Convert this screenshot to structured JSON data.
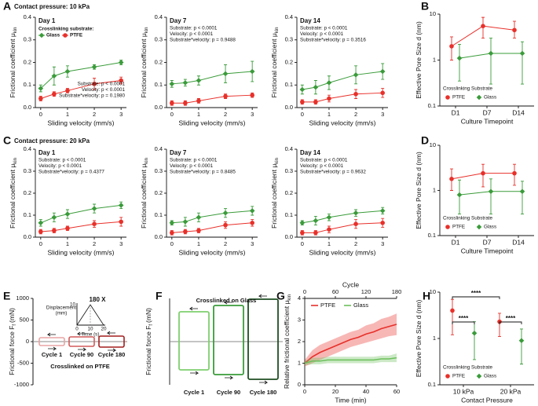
{
  "chart_data": [
    {
      "type": "line",
      "panel": "A",
      "heading": "Contact pressure: 10 kPa",
      "title": "Day 1",
      "xlabel": "Sliding velocity (mm/s)",
      "ylabel": "Frictional coefficient μ",
      "ylabel_sub": "kin",
      "x": [
        0,
        0.5,
        1,
        2,
        3
      ],
      "xlim": [
        -0.2,
        3.2
      ],
      "xticks": [
        0,
        1,
        2,
        3
      ],
      "ylim": [
        0,
        0.4
      ],
      "yticks": [
        {
          "value": 0,
          "label": "0.0"
        },
        0.1,
        0.2,
        0.3,
        0.4
      ],
      "legend_title": "Crosslinking substrate:",
      "legend": "upper left",
      "series": [
        {
          "name": "Glass",
          "color": "#3a9b3a",
          "marker": "diamond",
          "values": [
            0.085,
            0.14,
            0.16,
            0.18,
            0.2
          ],
          "errors": [
            0.015,
            0.04,
            0.025,
            0.01,
            0.01
          ]
        },
        {
          "name": "PTFE",
          "color": "#e8302a",
          "marker": "circle",
          "values": [
            0.04,
            0.06,
            0.075,
            0.105,
            0.12
          ],
          "errors": [
            0.01,
            0.01,
            0.01,
            0.025,
            0.015
          ]
        }
      ],
      "annotation_corner": "lower right",
      "annotations": [
        "Substrate: p < 0.0001",
        "Velocity: p < 0.0001",
        "Substrate*velocity: p = 0.1980"
      ]
    },
    {
      "type": "line",
      "title": "Day 7",
      "xlabel": "Sliding velocity (mm/s)",
      "ylabel": "Frictional coefficient μ",
      "ylabel_sub": "kin",
      "x": [
        0,
        0.5,
        1,
        2,
        3
      ],
      "xlim": [
        -0.2,
        3.2
      ],
      "xticks": [
        0,
        1,
        2,
        3
      ],
      "ylim": [
        0,
        0.4
      ],
      "yticks": [
        {
          "value": 0,
          "label": "0.0"
        },
        0.1,
        0.2,
        0.3,
        0.4
      ],
      "series": [
        {
          "color": "#3a9b3a",
          "marker": "diamond",
          "values": [
            0.105,
            0.11,
            0.12,
            0.15,
            0.16
          ],
          "errors": [
            0.015,
            0.015,
            0.02,
            0.04,
            0.045
          ]
        },
        {
          "color": "#e8302a",
          "marker": "circle",
          "values": [
            0.02,
            0.02,
            0.03,
            0.05,
            0.055
          ],
          "errors": [
            0.01,
            0.01,
            0.01,
            0.01,
            0.01
          ]
        }
      ],
      "annotation_corner": "upper left",
      "annotations": [
        "Substrate: p < 0.0001",
        "Velocity: p < 0.0001",
        "Substrate*velocity: p = 0.9488"
      ]
    },
    {
      "type": "line",
      "title": "Day 14",
      "xlabel": "Sliding velocity (mm/s)",
      "ylabel": "Frictional coefficient μ",
      "ylabel_sub": "kin",
      "x": [
        0,
        0.5,
        1,
        2,
        3
      ],
      "xlim": [
        -0.2,
        3.2
      ],
      "xticks": [
        0,
        1,
        2,
        3
      ],
      "ylim": [
        0,
        0.4
      ],
      "yticks": [
        {
          "value": 0,
          "label": "0.0"
        },
        0.1,
        0.2,
        0.3,
        0.4
      ],
      "series": [
        {
          "color": "#3a9b3a",
          "marker": "diamond",
          "values": [
            0.08,
            0.09,
            0.11,
            0.145,
            0.16
          ],
          "errors": [
            0.02,
            0.03,
            0.03,
            0.04,
            0.035
          ]
        },
        {
          "color": "#e8302a",
          "marker": "circle",
          "values": [
            0.025,
            0.025,
            0.04,
            0.06,
            0.065
          ],
          "errors": [
            0.01,
            0.01,
            0.015,
            0.02,
            0.02
          ]
        }
      ],
      "annotation_corner": "upper left",
      "annotations": [
        "Substrate: p < 0.0001",
        "Velocity: p < 0.0001",
        "Substrate*velocity: p = 0.3516"
      ]
    },
    {
      "type": "scatter",
      "panel": "B",
      "categories": [
        "D1",
        "D7",
        "D14"
      ],
      "xlabel": "Culture Timepoint",
      "ylabel": "Effective Pore Size d (nm)",
      "log": true,
      "ylim": [
        0.1,
        10
      ],
      "yticks": [
        0.1,
        1,
        10
      ],
      "connect": true,
      "legend_title": "Crosslinking Substrate",
      "legend": "lower left",
      "series": [
        {
          "name": "PTFE",
          "color": "#e8302a",
          "marker": "circle",
          "values": [
            2,
            5.5,
            4.5
          ],
          "lower": [
            1,
            3,
            3
          ],
          "upper": [
            3.2,
            8.5,
            7
          ]
        },
        {
          "name": "Glass",
          "color": "#3a9b3a",
          "marker": "diamond",
          "values": [
            1.1,
            1.4,
            1.4
          ],
          "lower": [
            0.35,
            0.3,
            0.3
          ],
          "upper": [
            2.2,
            3,
            2.5
          ]
        }
      ]
    },
    {
      "type": "line",
      "panel": "C",
      "heading": "Contact pressure: 20 kPa",
      "title": "Day 1",
      "xlabel": "Sliding velocity (mm/s)",
      "ylabel": "Frictional coefficient μ",
      "ylabel_sub": "kin",
      "x": [
        0,
        0.5,
        1,
        2,
        3
      ],
      "xlim": [
        -0.2,
        3.2
      ],
      "xticks": [
        0,
        1,
        2,
        3
      ],
      "ylim": [
        0,
        0.4
      ],
      "yticks": [
        {
          "value": 0,
          "label": "0.0"
        },
        0.1,
        0.2,
        0.3,
        0.4
      ],
      "series": [
        {
          "color": "#3a9b3a",
          "marker": "diamond",
          "values": [
            0.065,
            0.09,
            0.105,
            0.13,
            0.145
          ],
          "errors": [
            0.015,
            0.02,
            0.02,
            0.02,
            0.015
          ]
        },
        {
          "color": "#e8302a",
          "marker": "circle",
          "values": [
            0.025,
            0.03,
            0.04,
            0.06,
            0.07
          ],
          "errors": [
            0.01,
            0.01,
            0.01,
            0.015,
            0.02
          ]
        }
      ],
      "annotation_corner": "upper left",
      "annotations": [
        "Substrate: p < 0.0001",
        "Velocity: p < 0.0001",
        "Substrate*velocity: p = 0.4377"
      ]
    },
    {
      "type": "line",
      "title": "Day 7",
      "xlabel": "Sliding velocity (mm/s)",
      "ylabel": "Frictional coefficient μ",
      "ylabel_sub": "kin",
      "x": [
        0,
        0.5,
        1,
        2,
        3
      ],
      "xlim": [
        -0.2,
        3.2
      ],
      "xticks": [
        0,
        1,
        2,
        3
      ],
      "ylim": [
        0,
        0.4
      ],
      "yticks": [
        {
          "value": 0,
          "label": "0.0"
        },
        0.1,
        0.2,
        0.3,
        0.4
      ],
      "series": [
        {
          "color": "#3a9b3a",
          "marker": "diamond",
          "values": [
            0.065,
            0.07,
            0.09,
            0.11,
            0.12
          ],
          "errors": [
            0.01,
            0.02,
            0.02,
            0.02,
            0.02
          ]
        },
        {
          "color": "#e8302a",
          "marker": "circle",
          "values": [
            0.02,
            0.025,
            0.03,
            0.055,
            0.065
          ],
          "errors": [
            0.01,
            0.01,
            0.01,
            0.015,
            0.015
          ]
        }
      ],
      "annotation_corner": "upper left",
      "annotations": [
        "Substrate: p < 0.0001",
        "Velocity: p < 0.0001",
        "Substrate*velocity: p = 0.8485"
      ]
    },
    {
      "type": "line",
      "title": "Day 14",
      "xlabel": "Sliding velocity (mm/s)",
      "ylabel": "Frictional coefficient μ",
      "ylabel_sub": "kin",
      "x": [
        0,
        0.5,
        1,
        2,
        3
      ],
      "xlim": [
        -0.2,
        3.2
      ],
      "xticks": [
        0,
        1,
        2,
        3
      ],
      "ylim": [
        0,
        0.4
      ],
      "yticks": [
        {
          "value": 0,
          "label": "0.0"
        },
        0.1,
        0.2,
        0.3,
        0.4
      ],
      "series": [
        {
          "color": "#3a9b3a",
          "marker": "diamond",
          "values": [
            0.065,
            0.075,
            0.09,
            0.11,
            0.12
          ],
          "errors": [
            0.01,
            0.02,
            0.015,
            0.015,
            0.015
          ]
        },
        {
          "color": "#e8302a",
          "marker": "circle",
          "values": [
            0.02,
            0.02,
            0.035,
            0.06,
            0.065
          ],
          "errors": [
            0.01,
            0.01,
            0.015,
            0.02,
            0.02
          ]
        }
      ],
      "annotation_corner": "upper left",
      "annotations": [
        "Substrate: p < 0.0001",
        "Velocity: p < 0.0001",
        "Substrate*velocity: p = 0.9632"
      ]
    },
    {
      "type": "scatter",
      "panel": "D",
      "categories": [
        "D1",
        "D7",
        "D14"
      ],
      "xlabel": "Culture Timepoint",
      "ylabel": "Effective Pore Size d (nm)",
      "log": true,
      "ylim": [
        0.1,
        10
      ],
      "yticks": [
        0.1,
        1,
        10
      ],
      "connect": true,
      "legend_title": "Crosslinking Substrate",
      "legend": "lower left",
      "series": [
        {
          "name": "PTFE",
          "color": "#e8302a",
          "marker": "circle",
          "values": [
            1.8,
            2.4,
            2.4
          ],
          "lower": [
            1,
            1.2,
            1.3
          ],
          "upper": [
            3,
            3.8,
            3.8
          ]
        },
        {
          "name": "Glass",
          "color": "#3a9b3a",
          "marker": "diamond",
          "values": [
            0.8,
            0.95,
            0.95
          ],
          "lower": [
            0.3,
            0.3,
            0.3
          ],
          "upper": [
            1.7,
            1.8,
            1.6
          ]
        }
      ]
    },
    {
      "type": "force-loops",
      "panel": "E",
      "ylabel": "Frictional force F",
      "ylabel_sub": "f",
      "ylabel_unit": "(mN)",
      "ylim": [
        -1000,
        1000
      ],
      "yticks": [
        1000,
        500,
        0,
        -500,
        -1000
      ],
      "cycles": [
        "Cycle 1",
        "Cycle 90",
        "Cycle 180"
      ],
      "colors": [
        "#e8a3a3",
        "#d25a5a",
        "#a31f1f"
      ],
      "caption": "Crosslinked on PTFE",
      "caption_color": "#e8302a",
      "inset": {
        "label": "180 X",
        "ylabel": [
          "Displacement",
          "(mm)"
        ],
        "xlabel": "Time (s)",
        "xlim": [
          0,
          20
        ],
        "xticks": [
          0,
          10,
          20
        ],
        "ylim": [
          0,
          10
        ],
        "yticks": [
          10
        ]
      }
    },
    {
      "type": "force-loops",
      "panel": "F",
      "ylabel": "Frictional force F",
      "ylabel_sub": "f",
      "ylabel_unit": "(mN)",
      "cycles": [
        "Cycle 1",
        "Cycle 90",
        "Cycle 180"
      ],
      "colors": [
        "#7fcf6e",
        "#3a9b3a",
        "#1f4f22"
      ],
      "caption": "Crosslinked on Glass",
      "caption_color": "#3a9b3a"
    },
    {
      "type": "line",
      "panel": "G",
      "xlabel": "Time (min)",
      "x2label": "Cycle",
      "ylabel": "Relative frictional coefficient μ",
      "ylabel_sub": "kin",
      "x": [
        0,
        5,
        10,
        15,
        20,
        25,
        30,
        35,
        40,
        45,
        50,
        55,
        60
      ],
      "xlim": [
        0,
        60
      ],
      "xticks": [
        0,
        20,
        40,
        60
      ],
      "x2lim": [
        0,
        180
      ],
      "x2ticks": [
        0,
        60,
        120,
        180
      ],
      "ylim": [
        0,
        4
      ],
      "yticks": [
        0,
        1,
        2,
        3,
        4
      ],
      "legend": "upper left",
      "series": [
        {
          "name": "PTFE",
          "color": "#e8302a",
          "values": [
            1.0,
            1.3,
            1.5,
            1.65,
            1.8,
            1.95,
            2.1,
            2.2,
            2.35,
            2.45,
            2.6,
            2.7,
            2.8
          ],
          "lower": [
            0.85,
            1.0,
            1.15,
            1.3,
            1.45,
            1.6,
            1.75,
            1.85,
            1.95,
            2.05,
            2.15,
            2.25,
            2.3
          ],
          "upper": [
            1.15,
            1.6,
            1.85,
            2.0,
            2.15,
            2.3,
            2.45,
            2.55,
            2.75,
            2.85,
            3.05,
            3.15,
            3.3
          ]
        },
        {
          "name": "Glass",
          "color": "#6cc05c",
          "values": [
            1.0,
            1.1,
            1.1,
            1.15,
            1.15,
            1.15,
            1.15,
            1.15,
            1.15,
            1.15,
            1.2,
            1.2,
            1.25
          ],
          "lower": [
            0.9,
            0.95,
            0.95,
            1.0,
            1.0,
            1.0,
            1.0,
            1.0,
            1.0,
            1.0,
            1.05,
            1.05,
            1.05
          ],
          "upper": [
            1.1,
            1.25,
            1.25,
            1.3,
            1.3,
            1.3,
            1.3,
            1.3,
            1.3,
            1.3,
            1.35,
            1.35,
            1.45
          ]
        }
      ]
    },
    {
      "type": "scatter",
      "panel": "H",
      "categories": [
        "10 kPa",
        "20 kPa"
      ],
      "xlabel": "Contact Pressure",
      "ylabel": "Effective Pore Size d (nm)",
      "log": true,
      "ylim": [
        0.1,
        10
      ],
      "yticks": [
        0.1,
        1,
        10
      ],
      "connect": false,
      "legend_title": "Crosslinking Substrate",
      "legend": "lower left",
      "significance": [
        "****",
        "****",
        "****"
      ],
      "series": [
        {
          "name": "PTFE",
          "color": "#e8302a",
          "marker": "circle",
          "values": [
            4,
            2.3
          ],
          "lower": [
            1.2,
            1.1
          ],
          "upper": [
            7,
            3.5
          ]
        },
        {
          "name": "Glass",
          "color": "#3a9b3a",
          "marker": "diamond",
          "values": [
            1.3,
            0.9
          ],
          "lower": [
            0.35,
            0.28
          ],
          "upper": [
            2.3,
            1.6
          ]
        }
      ]
    }
  ]
}
